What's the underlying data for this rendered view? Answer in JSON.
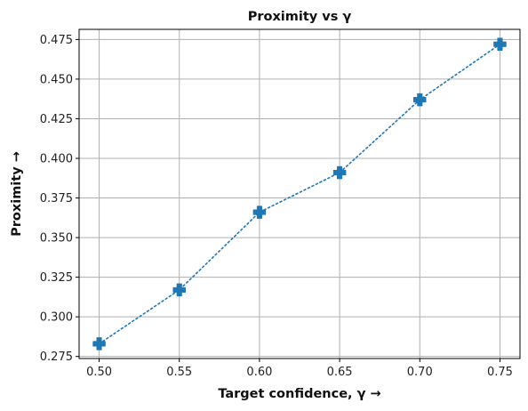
{
  "chart_data": {
    "type": "line",
    "title": "Proximity vs γ",
    "xlabel": "Target confidence, γ →",
    "ylabel": "Proximity →",
    "x": [
      0.5,
      0.55,
      0.6,
      0.65,
      0.7,
      0.75
    ],
    "xticks": [
      "0.50",
      "0.55",
      "0.60",
      "0.65",
      "0.70",
      "0.75"
    ],
    "yticks": [
      "0.275",
      "0.300",
      "0.325",
      "0.350",
      "0.375",
      "0.400",
      "0.425",
      "0.450",
      "0.475"
    ],
    "xlim": [
      0.4875,
      0.7625
    ],
    "ylim": [
      0.2737,
      0.4814
    ],
    "grid": true,
    "series": [
      {
        "values": [
          0.283,
          0.317,
          0.366,
          0.391,
          0.437,
          0.472
        ],
        "color": "#1f77b4",
        "line_style": "dotted",
        "marker": "plus-filled"
      }
    ]
  }
}
